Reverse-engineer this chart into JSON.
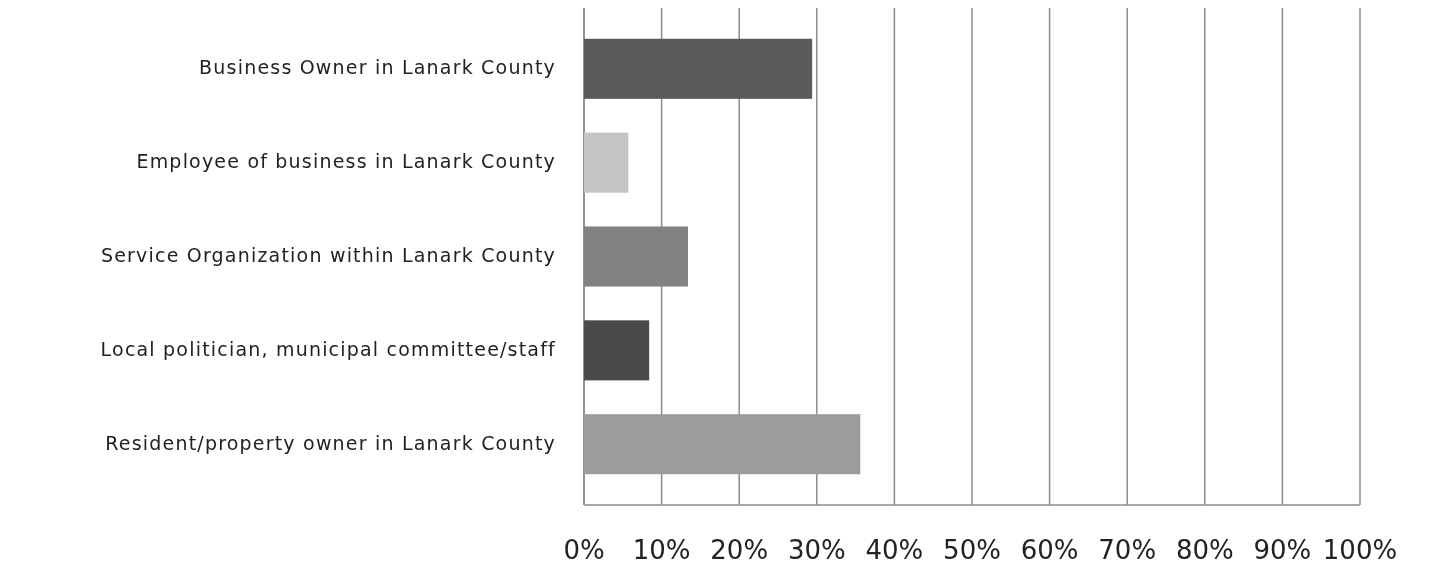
{
  "chart_data": {
    "type": "bar",
    "orientation": "horizontal",
    "categories": [
      "Business Owner in Lanark County",
      "Employee of business in Lanark County",
      "Service Organization within Lanark County",
      "Local politician, municipal committee/staff",
      "Resident/property owner in Lanark County"
    ],
    "values": [
      29.4,
      5.7,
      13.4,
      8.4,
      35.6
    ],
    "colors": [
      "#5a5a5a",
      "#c4c4c4",
      "#828282",
      "#4a4a4a",
      "#9c9c9c"
    ],
    "xlim": [
      0,
      100
    ],
    "xticks": [
      {
        "value": 0,
        "label": "0%"
      },
      {
        "value": 10,
        "label": "10%"
      },
      {
        "value": 20,
        "label": "20%"
      },
      {
        "value": 30,
        "label": "30%"
      },
      {
        "value": 40,
        "label": "40%"
      },
      {
        "value": 50,
        "label": "50%"
      },
      {
        "value": 60,
        "label": "60%"
      },
      {
        "value": 70,
        "label": "70%"
      },
      {
        "value": 80,
        "label": "80%"
      },
      {
        "value": 90,
        "label": "90%"
      },
      {
        "value": 100,
        "label": "100%"
      }
    ],
    "grid": "x"
  }
}
